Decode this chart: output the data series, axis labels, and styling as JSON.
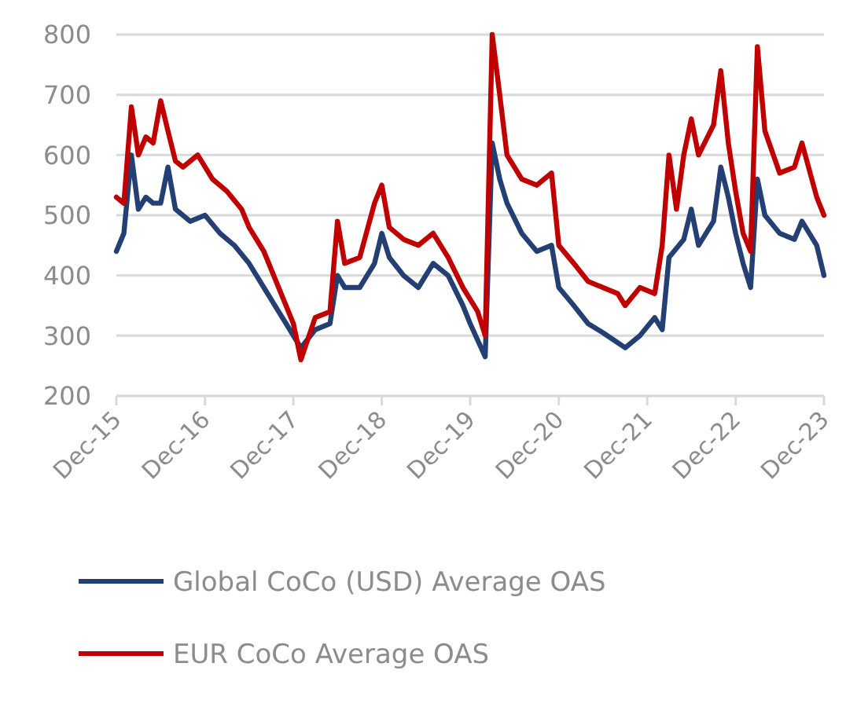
{
  "chart_data": {
    "type": "line",
    "xlim": [
      "2015-12",
      "2023-12"
    ],
    "xticks": [
      {
        "value": "2015-12",
        "label": "Dec-15"
      },
      {
        "value": "2016-12",
        "label": "Dec-16"
      },
      {
        "value": "2017-12",
        "label": "Dec-17"
      },
      {
        "value": "2018-12",
        "label": "Dec-18"
      },
      {
        "value": "2019-12",
        "label": "Dec-19"
      },
      {
        "value": "2020-12",
        "label": "Dec-20"
      },
      {
        "value": "2021-12",
        "label": "Dec-21"
      },
      {
        "value": "2022-12",
        "label": "Dec-22"
      },
      {
        "value": "2023-12",
        "label": "Dec-23"
      }
    ],
    "ylim": [
      200,
      800
    ],
    "yticks": [
      200,
      300,
      400,
      500,
      600,
      700,
      800
    ],
    "grid": "y",
    "legend": "bottom",
    "marker": "none",
    "line_style": "solid",
    "series": [
      {
        "name": "Global CoCo (USD) Average OAS",
        "color": "#233f73",
        "x": [
          "2015-12",
          "2016-01",
          "2016-02",
          "2016-03",
          "2016-04",
          "2016-05",
          "2016-06",
          "2016-07",
          "2016-08",
          "2016-10",
          "2016-12",
          "2017-02",
          "2017-04",
          "2017-06",
          "2017-08",
          "2017-10",
          "2017-11",
          "2017-12",
          "2018-01",
          "2018-03",
          "2018-05",
          "2018-06",
          "2018-07",
          "2018-09",
          "2018-11",
          "2018-12",
          "2019-01",
          "2019-03",
          "2019-05",
          "2019-07",
          "2019-09",
          "2019-11",
          "2019-12",
          "2020-02",
          "2020-03",
          "2020-04",
          "2020-05",
          "2020-07",
          "2020-09",
          "2020-11",
          "2020-12",
          "2021-02",
          "2021-04",
          "2021-06",
          "2021-09",
          "2021-11",
          "2022-01",
          "2022-02",
          "2022-03",
          "2022-05",
          "2022-06",
          "2022-07",
          "2022-09",
          "2022-10",
          "2022-11",
          "2022-12",
          "2023-01",
          "2023-02",
          "2023-03",
          "2023-04",
          "2023-06",
          "2023-08",
          "2023-09",
          "2023-11",
          "2023-12"
        ],
        "values": [
          440,
          470,
          600,
          510,
          530,
          520,
          520,
          580,
          510,
          490,
          500,
          470,
          450,
          420,
          380,
          340,
          320,
          300,
          280,
          310,
          320,
          400,
          380,
          380,
          420,
          470,
          430,
          400,
          380,
          420,
          400,
          350,
          320,
          265,
          620,
          560,
          520,
          470,
          440,
          450,
          380,
          350,
          320,
          305,
          280,
          300,
          330,
          310,
          430,
          460,
          510,
          450,
          490,
          580,
          530,
          470,
          420,
          380,
          560,
          500,
          470,
          460,
          490,
          450,
          400
        ]
      },
      {
        "name": "EUR CoCo Average OAS",
        "color": "#c00000",
        "x": [
          "2015-12",
          "2016-01",
          "2016-02",
          "2016-03",
          "2016-04",
          "2016-05",
          "2016-06",
          "2016-07",
          "2016-08",
          "2016-09",
          "2016-11",
          "2017-01",
          "2017-03",
          "2017-05",
          "2017-06",
          "2017-08",
          "2017-10",
          "2017-12",
          "2018-01",
          "2018-03",
          "2018-05",
          "2018-06",
          "2018-07",
          "2018-09",
          "2018-11",
          "2018-12",
          "2019-01",
          "2019-03",
          "2019-05",
          "2019-07",
          "2019-09",
          "2019-11",
          "2020-01",
          "2020-02",
          "2020-03",
          "2020-04",
          "2020-05",
          "2020-07",
          "2020-09",
          "2020-11",
          "2020-12",
          "2021-02",
          "2021-04",
          "2021-06",
          "2021-08",
          "2021-09",
          "2021-11",
          "2022-01",
          "2022-02",
          "2022-03",
          "2022-04",
          "2022-05",
          "2022-06",
          "2022-07",
          "2022-09",
          "2022-10",
          "2022-11",
          "2022-12",
          "2023-01",
          "2023-02",
          "2023-03",
          "2023-04",
          "2023-06",
          "2023-08",
          "2023-09",
          "2023-11",
          "2023-12"
        ],
        "values": [
          530,
          520,
          680,
          600,
          630,
          620,
          690,
          640,
          590,
          580,
          600,
          560,
          540,
          510,
          480,
          440,
          380,
          320,
          260,
          330,
          340,
          490,
          420,
          430,
          520,
          550,
          480,
          460,
          450,
          470,
          430,
          380,
          340,
          300,
          800,
          700,
          600,
          560,
          550,
          570,
          450,
          420,
          390,
          380,
          370,
          350,
          380,
          370,
          450,
          600,
          510,
          600,
          660,
          600,
          650,
          740,
          620,
          540,
          470,
          440,
          780,
          640,
          570,
          580,
          620,
          530,
          500
        ]
      }
    ]
  }
}
